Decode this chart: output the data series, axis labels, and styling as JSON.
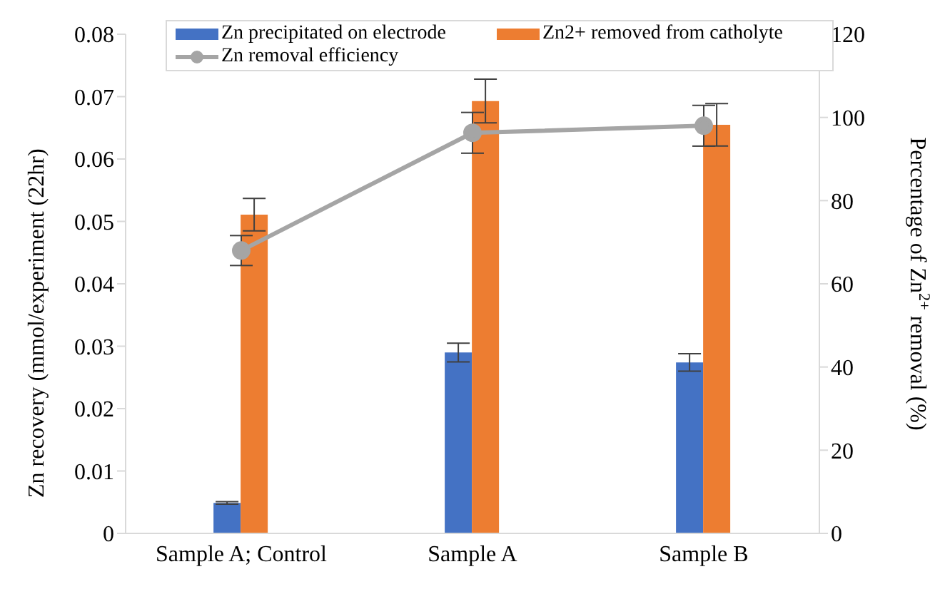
{
  "chart_data": {
    "type": "bar",
    "categories": [
      "Sample A; Control",
      "Sample A",
      "Sample B"
    ],
    "ylabel": "Zn recovery (mmol/experiment (22hr)",
    "y2label": "Percentage of Zn$^{2+}$ removal (%)",
    "ylim": [
      0,
      0.08
    ],
    "yticks": [
      0,
      0.01,
      0.02,
      0.03,
      0.04,
      0.05,
      0.06,
      0.07,
      0.08
    ],
    "y2lim": [
      0,
      120
    ],
    "y2ticks": [
      0,
      20,
      40,
      60,
      80,
      100,
      120
    ],
    "grid": false,
    "legend": "top",
    "marker": "circle",
    "series": [
      {
        "name": "Zn precipitated on electrode",
        "color": "#4472c4",
        "values": [
          0.0049,
          0.029,
          0.0274
        ],
        "errors": [
          0.0002,
          0.0015,
          0.0014
        ]
      },
      {
        "name": "Zn2+ removed from catholyte",
        "color": "#ed7d31",
        "values": [
          0.0511,
          0.0693,
          0.0655
        ],
        "errors": [
          0.0026,
          0.0035,
          0.0034
        ]
      },
      {
        "name": "Zn removal efficiency",
        "type": "line",
        "axis": "y2",
        "color": "#a5a5a5",
        "values": [
          68,
          96.3,
          98
        ],
        "errors": [
          3.6,
          4.9,
          4.9
        ]
      }
    ]
  }
}
